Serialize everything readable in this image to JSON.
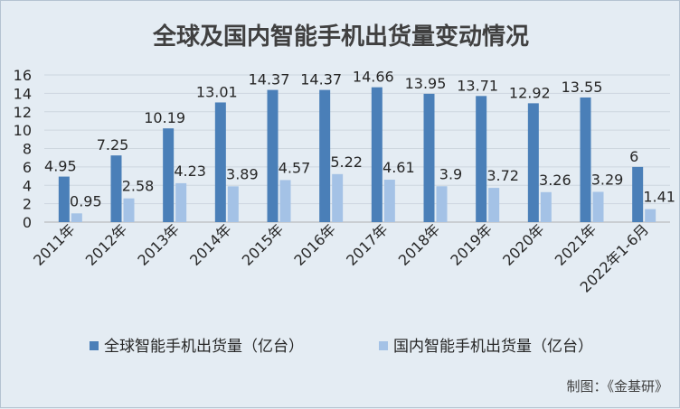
{
  "chart_data": {
    "type": "bar",
    "title": "全球及国内智能手机出货量变动情况",
    "categories": [
      "2011年",
      "2012年",
      "2013年",
      "2014年",
      "2015年",
      "2016年",
      "2017年",
      "2018年",
      "2019年",
      "2020年",
      "2021年",
      "2022年1-6月"
    ],
    "series": [
      {
        "name": "全球智能手机出货量（亿台）",
        "values": [
          4.95,
          7.25,
          10.19,
          13.01,
          14.37,
          14.37,
          14.66,
          13.95,
          13.71,
          12.92,
          13.55,
          6
        ],
        "labels": [
          "4.95",
          "7.25",
          "10.19",
          "13.01",
          "14.37",
          "14.37",
          "14.66",
          "13.95",
          "13.71",
          "12.92",
          "13.55",
          "6"
        ],
        "color": "#4a7fb8"
      },
      {
        "name": "国内智能手机出货量（亿台）",
        "values": [
          0.95,
          2.58,
          4.23,
          3.89,
          4.57,
          5.22,
          4.61,
          3.9,
          3.72,
          3.26,
          3.29,
          1.41
        ],
        "labels": [
          "0.95",
          "2.58",
          "4.23",
          "3.89",
          "4.57",
          "5.22",
          "4.61",
          "3.9",
          "3.72",
          "3.26",
          "3.29",
          "1.41"
        ],
        "color": "#a4c2e6"
      }
    ],
    "yticks": [
      "0",
      "2",
      "4",
      "6",
      "8",
      "10",
      "12",
      "14",
      "16"
    ],
    "ylim": [
      0,
      16
    ],
    "grid": true,
    "legend": "bottom"
  },
  "credit": "制图：《金基研》"
}
